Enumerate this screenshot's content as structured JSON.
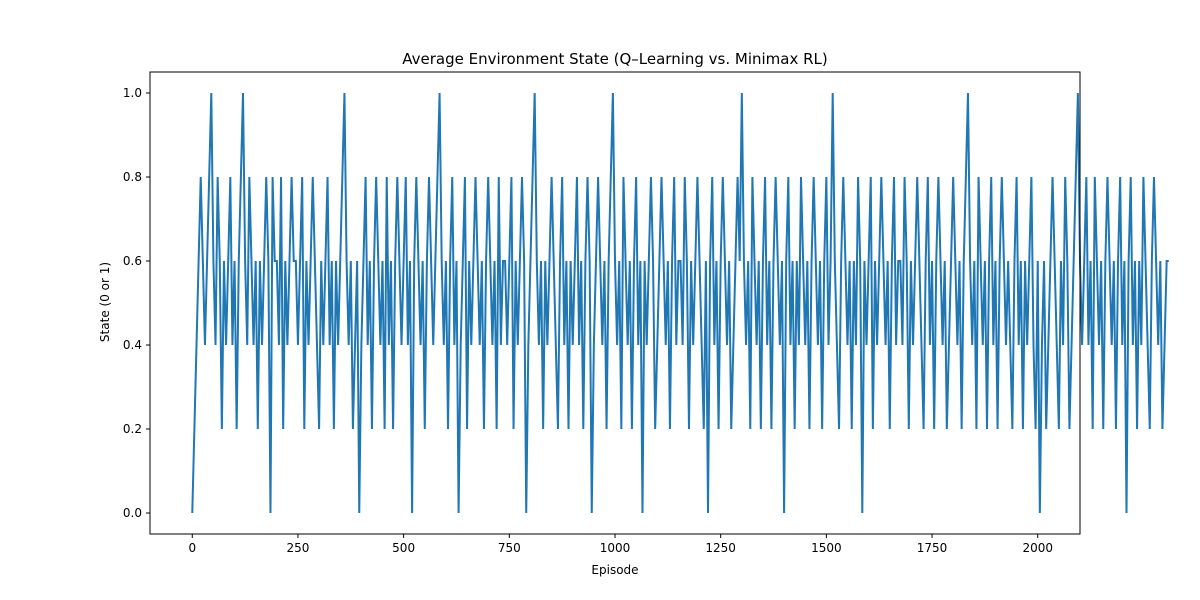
{
  "chart_data": {
    "type": "line",
    "title": "Average Environment State (Q–Learning vs. Minimax RL)",
    "xlabel": "Episode",
    "ylabel": "State (0 or 1)",
    "xlim": [
      -100,
      2100
    ],
    "ylim": [
      -0.05,
      1.05
    ],
    "xticks": [
      0,
      250,
      500,
      750,
      1000,
      1250,
      1500,
      1750,
      2000
    ],
    "xtick_labels": [
      "0",
      "250",
      "500",
      "750",
      "1000",
      "1250",
      "1500",
      "1750",
      "2000"
    ],
    "yticks": [
      0.0,
      0.2,
      0.4,
      0.6,
      0.8,
      1.0
    ],
    "ytick_labels": [
      "0.0",
      "0.2",
      "0.4",
      "0.6",
      "0.8",
      "1.0"
    ],
    "grid": false,
    "legend": "none",
    "series": [
      {
        "color": "#1f77b4",
        "x_start": 0,
        "x_step": 5,
        "values": [
          0.0,
          0.2,
          0.4,
          0.6,
          0.8,
          0.6,
          0.4,
          0.6,
          0.8,
          1.0,
          0.6,
          0.4,
          0.8,
          0.6,
          0.2,
          0.6,
          0.4,
          0.6,
          0.8,
          0.4,
          0.6,
          0.2,
          0.6,
          0.8,
          1.0,
          0.6,
          0.4,
          0.8,
          0.6,
          0.4,
          0.6,
          0.2,
          0.6,
          0.4,
          0.6,
          0.8,
          0.6,
          0.0,
          0.8,
          0.6,
          0.6,
          0.4,
          0.8,
          0.2,
          0.6,
          0.4,
          0.6,
          0.8,
          0.6,
          0.6,
          0.4,
          0.6,
          0.8,
          0.2,
          0.6,
          0.4,
          0.6,
          0.8,
          0.6,
          0.4,
          0.2,
          0.6,
          0.4,
          0.6,
          0.8,
          0.4,
          0.6,
          0.2,
          0.6,
          0.4,
          0.6,
          0.8,
          1.0,
          0.6,
          0.4,
          0.6,
          0.2,
          0.4,
          0.6,
          0.0,
          0.4,
          0.6,
          0.8,
          0.4,
          0.6,
          0.2,
          0.6,
          0.8,
          0.6,
          0.4,
          0.6,
          0.2,
          0.8,
          0.4,
          0.6,
          0.2,
          0.6,
          0.8,
          0.6,
          0.4,
          0.6,
          0.8,
          0.4,
          0.6,
          0.0,
          0.6,
          0.8,
          0.6,
          0.4,
          0.6,
          0.2,
          0.6,
          0.8,
          0.6,
          0.4,
          0.6,
          0.8,
          1.0,
          0.6,
          0.4,
          0.6,
          0.2,
          0.6,
          0.8,
          0.4,
          0.6,
          0.0,
          0.4,
          0.6,
          0.8,
          0.2,
          0.6,
          0.4,
          0.6,
          0.8,
          0.6,
          0.4,
          0.6,
          0.2,
          0.6,
          0.8,
          0.6,
          0.4,
          0.6,
          0.2,
          0.8,
          0.4,
          0.6,
          0.6,
          0.4,
          0.6,
          0.8,
          0.2,
          0.6,
          0.4,
          0.6,
          0.8,
          0.6,
          0.0,
          0.4,
          0.6,
          0.8,
          1.0,
          0.6,
          0.4,
          0.6,
          0.2,
          0.6,
          0.4,
          0.6,
          0.8,
          0.6,
          0.4,
          0.2,
          0.6,
          0.8,
          0.4,
          0.6,
          0.2,
          0.6,
          0.4,
          0.6,
          0.8,
          0.4,
          0.6,
          0.2,
          0.6,
          0.8,
          0.6,
          0.0,
          0.4,
          0.6,
          0.8,
          0.6,
          0.4,
          0.6,
          0.2,
          0.6,
          0.8,
          1.0,
          0.6,
          0.4,
          0.6,
          0.2,
          0.8,
          0.6,
          0.4,
          0.6,
          0.2,
          0.6,
          0.8,
          0.4,
          0.6,
          0.0,
          0.6,
          0.4,
          0.6,
          0.8,
          0.6,
          0.2,
          0.4,
          0.6,
          0.8,
          0.6,
          0.4,
          0.6,
          0.2,
          0.6,
          0.8,
          0.4,
          0.6,
          0.6,
          0.4,
          0.8,
          0.6,
          0.2,
          0.6,
          0.4,
          0.6,
          0.8,
          0.6,
          0.4,
          0.2,
          0.6,
          0.0,
          0.6,
          0.8,
          0.4,
          0.6,
          0.2,
          0.6,
          0.8,
          0.6,
          0.4,
          0.6,
          0.2,
          0.4,
          0.6,
          0.8,
          0.6,
          1.0,
          0.6,
          0.4,
          0.6,
          0.2,
          0.8,
          0.6,
          0.4,
          0.6,
          0.2,
          0.6,
          0.8,
          0.4,
          0.6,
          0.2,
          0.6,
          0.8,
          0.6,
          0.4,
          0.6,
          0.0,
          0.6,
          0.8,
          0.4,
          0.6,
          0.2,
          0.6,
          0.4,
          0.8,
          0.6,
          0.4,
          0.6,
          0.2,
          0.6,
          0.8,
          0.6,
          0.4,
          0.6,
          0.2,
          0.6,
          0.8,
          0.4,
          0.6,
          1.0,
          0.6,
          0.4,
          0.2,
          0.6,
          0.8,
          0.6,
          0.4,
          0.6,
          0.2,
          0.6,
          0.4,
          0.8,
          0.6,
          0.0,
          0.6,
          0.4,
          0.6,
          0.8,
          0.2,
          0.6,
          0.4,
          0.6,
          0.8,
          0.6,
          0.4,
          0.6,
          0.2,
          0.6,
          0.8,
          0.4,
          0.6,
          0.6,
          0.4,
          0.8,
          0.6,
          0.2,
          0.6,
          0.4,
          0.6,
          0.8,
          0.6,
          0.4,
          0.2,
          0.6,
          0.8,
          0.4,
          0.6,
          0.2,
          0.6,
          0.8,
          0.6,
          0.4,
          0.6,
          0.2,
          0.4,
          0.6,
          0.8,
          0.6,
          0.4,
          0.6,
          0.2,
          0.6,
          0.8,
          1.0,
          0.6,
          0.4,
          0.6,
          0.2,
          0.8,
          0.6,
          0.4,
          0.6,
          0.2,
          0.6,
          0.8,
          0.4,
          0.6,
          0.2,
          0.6,
          0.8,
          0.6,
          0.4,
          0.6,
          0.4,
          0.2,
          0.6,
          0.8,
          0.4,
          0.6,
          0.2,
          0.6,
          0.4,
          0.6,
          0.8,
          0.4,
          0.2,
          0.6,
          0.0,
          0.4,
          0.6,
          0.2,
          0.4,
          0.6,
          0.8,
          0.6,
          0.4,
          0.2,
          0.6,
          0.4,
          0.8,
          0.6,
          0.2,
          0.4,
          0.6,
          0.8,
          1.0,
          0.6,
          0.4,
          0.6,
          0.8,
          0.4,
          0.6,
          0.2,
          0.8,
          0.6,
          0.4,
          0.6,
          0.2,
          0.6,
          0.8,
          0.6,
          0.4,
          0.6,
          0.2,
          0.6,
          0.8,
          0.4,
          0.6,
          0.0,
          0.6,
          0.8,
          0.4,
          0.6,
          0.2,
          0.6,
          0.4,
          0.8,
          0.6,
          0.4,
          0.2,
          0.6,
          0.8,
          0.6,
          0.4,
          0.6,
          0.2,
          0.4,
          0.6,
          0.6
        ]
      }
    ]
  }
}
